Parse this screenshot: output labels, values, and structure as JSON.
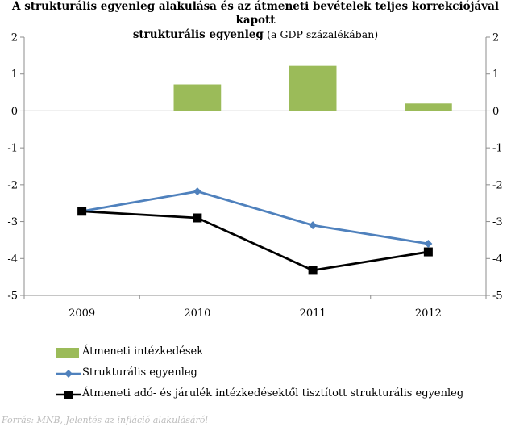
{
  "title": {
    "line1": "A strukturális egyenleg alakulása és az átmeneti bevételek teljes korrekciójával kapott",
    "line2": "strukturális egyenleg",
    "unit": "(a GDP százalékában)"
  },
  "chart_data": {
    "type": "bar+line",
    "categories": [
      "2009",
      "2010",
      "2011",
      "2012"
    ],
    "ylim": [
      -5,
      2
    ],
    "yticks": [
      2,
      1,
      0,
      -1,
      -2,
      -3,
      -4,
      -5
    ],
    "ytick_labels": [
      "2",
      "1",
      "0",
      "-1",
      "-2",
      "-3",
      "-4",
      "-5"
    ],
    "series": [
      {
        "name": "Átmeneti intézkedések",
        "kind": "bar",
        "color": "#9bbb59",
        "values": [
          0,
          0.72,
          1.22,
          0.2
        ]
      },
      {
        "name": "Strukturális egyenleg",
        "kind": "line",
        "marker": "diamond",
        "color": "#4f81bd",
        "values": [
          -2.72,
          -2.18,
          -3.1,
          -3.6
        ]
      },
      {
        "name": "Átmeneti adó- és járulék intézkedésektől tisztított strukturális egyenleg",
        "kind": "line",
        "marker": "square",
        "color": "#000000",
        "values": [
          -2.72,
          -2.9,
          -4.32,
          -3.82
        ]
      }
    ]
  },
  "source": "Forrás: MNB, Jelentés az infláció alakulásáról"
}
